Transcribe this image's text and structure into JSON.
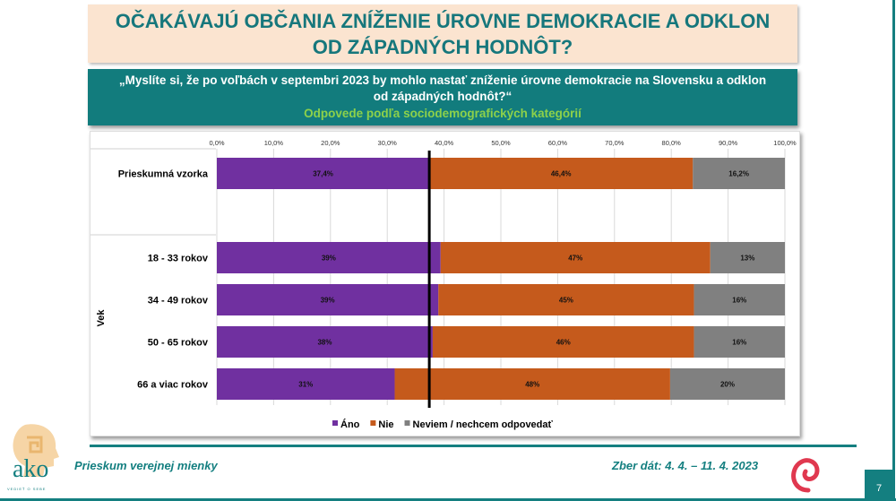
{
  "header": {
    "title_line1": "OČAKÁVAJÚ OBČANIA ZNÍŽENIE ÚROVNE DEMOKRACIE A ODKLON",
    "title_line2": "OD ZÁPADNÝCH HODNÔT?"
  },
  "question": {
    "text": "„Myslíte si, že po voľbách v septembri 2023 by mohlo nastať zníženie úrovne demokracie na Slovensku a odklon od západných hodnôt?“",
    "subtitle": "Odpovede podľa sociodemografických kategórií"
  },
  "chart_data": {
    "type": "bar",
    "orientation": "horizontal-stacked",
    "xlim": [
      0,
      100
    ],
    "x_ticks": [
      "0,0%",
      "10,0%",
      "20,0%",
      "30,0%",
      "40,0%",
      "50,0%",
      "60,0%",
      "70,0%",
      "80,0%",
      "90,0%",
      "100,0%"
    ],
    "grid": true,
    "legend_position": "bottom",
    "group_label": "Vek",
    "reference_line": 37.4,
    "categories": [
      "Prieskumná vzorka",
      "18 - 33 rokov",
      "34 - 49 rokov",
      "50 - 65 rokov",
      "66 a viac rokov"
    ],
    "series": [
      {
        "name": "Áno",
        "color": "#7030a0",
        "values": [
          37.4,
          39,
          39,
          38,
          31
        ],
        "labels": [
          "37,4%",
          "39%",
          "39%",
          "38%",
          "31%"
        ]
      },
      {
        "name": "Nie",
        "color": "#c55a1c",
        "values": [
          46.4,
          47,
          45,
          46,
          48
        ],
        "labels": [
          "46,4%",
          "47%",
          "45%",
          "46%",
          "48%"
        ]
      },
      {
        "name": "Neviem / nechcem odpovedať",
        "color": "#808080",
        "values": [
          16.2,
          13,
          16,
          16,
          20
        ],
        "labels": [
          "16,2%",
          "13%",
          "16%",
          "16%",
          "20%"
        ]
      }
    ]
  },
  "footer": {
    "left": "Prieskum verejnej mienky",
    "right": "Zber dát: 4. 4. – 11. 4. 2023",
    "page": "7",
    "logo_text": "ako",
    "logo_slogan": "VEDIEŤ O SEBE"
  }
}
